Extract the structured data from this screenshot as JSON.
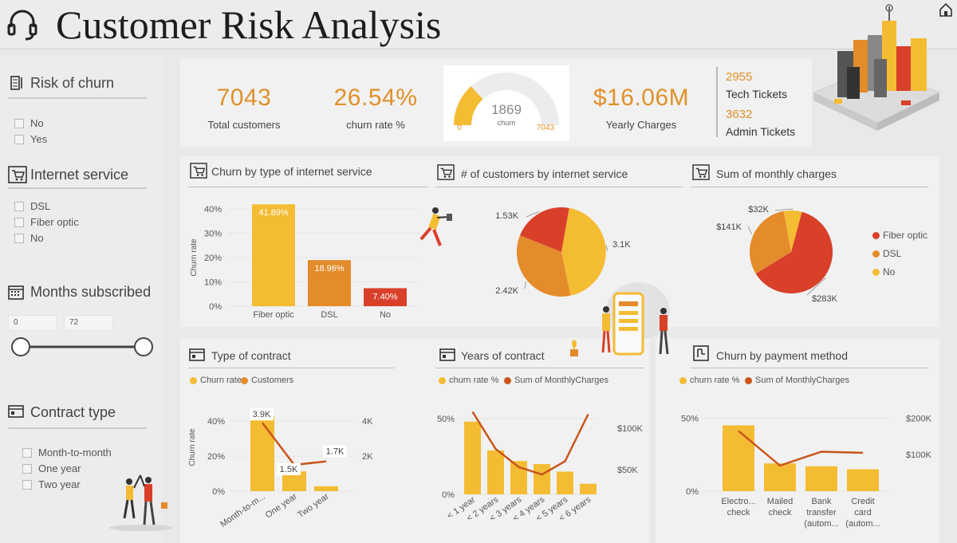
{
  "header": {
    "title": "Customer Risk Analysis"
  },
  "colors": {
    "yellow": "#f4bc33",
    "orange": "#e48b2c",
    "red": "#d8402a",
    "line": "#c8551c",
    "accent_text": "#e0902a"
  },
  "sidebar": {
    "risk_of_churn": {
      "title": "Risk of churn",
      "options": [
        "No",
        "Yes"
      ]
    },
    "internet_service": {
      "title": "Internet service",
      "options": [
        "DSL",
        "Fiber optic",
        "No"
      ]
    },
    "months_subscribed": {
      "title": "Months subscribed",
      "min": "0",
      "max": "72"
    },
    "contract_type": {
      "title": "Contract type",
      "options": [
        "Month-to-month",
        "One year",
        "Two year"
      ]
    }
  },
  "kpis": {
    "total_customers": {
      "value": "7043",
      "label": "Total customers"
    },
    "churn_rate": {
      "value": "26.54%",
      "label": "churn rate %"
    },
    "gauge": {
      "value": "1869",
      "label": "churn",
      "min": "0",
      "max": "7043",
      "fraction": 0.2654
    },
    "yearly_charges": {
      "value": "$16.06M",
      "label": "Yearly Charges"
    },
    "tech_tickets": {
      "value": "2955",
      "label": "Tech Tickets"
    },
    "admin_tickets": {
      "value": "3632",
      "label": "Admin Tickets"
    }
  },
  "chart_data": [
    {
      "id": "churn-by-internet",
      "type": "bar",
      "title": "Churn by type of internet service",
      "ylabel": "Churn rate",
      "ylim": [
        0,
        40
      ],
      "yticks": [
        "0%",
        "10%",
        "20%",
        "30%",
        "40%"
      ],
      "categories": [
        "Fiber optic",
        "DSL",
        "No"
      ],
      "values": [
        41.89,
        18.96,
        7.4
      ],
      "data_labels": [
        "41.89%",
        "18.96%",
        "7.40%"
      ],
      "bar_colors": [
        "#f4bc33",
        "#e48b2c",
        "#d8402a"
      ]
    },
    {
      "id": "customers-by-internet",
      "type": "pie",
      "title": "# of customers by internet service",
      "slices": [
        {
          "label": "3.1K",
          "value": 3100,
          "color": "#f4bc33"
        },
        {
          "label": "2.42K",
          "value": 2420,
          "color": "#e48b2c"
        },
        {
          "label": "1.53K",
          "value": 1530,
          "color": "#d8402a"
        }
      ]
    },
    {
      "id": "monthly-charges",
      "type": "pie",
      "title": "Sum of monthly charges",
      "legend": [
        {
          "name": "Fiber optic",
          "color": "#d8402a"
        },
        {
          "name": "DSL",
          "color": "#e48b2c"
        },
        {
          "name": "No",
          "color": "#f4bc33"
        }
      ],
      "slices": [
        {
          "label": "$283K",
          "value": 283,
          "color": "#d8402a"
        },
        {
          "label": "$141K",
          "value": 141,
          "color": "#e48b2c"
        },
        {
          "label": "$32K",
          "value": 32,
          "color": "#f4bc33"
        }
      ]
    },
    {
      "id": "type-of-contract",
      "type": "bar",
      "title": "Type of contract",
      "legend": [
        "Churn rate",
        "Customers"
      ],
      "ylabel": "Churn rate",
      "ylim": [
        0,
        50
      ],
      "yticks": [
        "0%",
        "20%",
        "40%"
      ],
      "y2ticks": [
        "2K",
        "4K"
      ],
      "y2lim": [
        0,
        5000
      ],
      "categories": [
        "Month-to-m...",
        "One year",
        "Two year"
      ],
      "bar_values": [
        42.7,
        11.3,
        2.8
      ],
      "line_values": [
        3900,
        1500,
        1700
      ],
      "line_labels": [
        "3.9K",
        "1.5K",
        "1.7K"
      ]
    },
    {
      "id": "years-of-contract",
      "type": "bar",
      "title": "Years of contract",
      "legend": [
        "churn rate %",
        "Sum of MonthlyCharges"
      ],
      "ylim": [
        0,
        60
      ],
      "yticks": [
        "0%",
        "50%"
      ],
      "y2ticks": [
        "$50K",
        "$100K"
      ],
      "y2lim": [
        20000,
        130000
      ],
      "categories": [
        "< 1 year",
        "< 2 years",
        "< 3 years",
        "< 4 years",
        "< 5 years",
        "< 6 years"
      ],
      "bar_values": [
        48,
        29,
        22,
        20,
        15,
        7
      ],
      "line_values": [
        120000,
        75000,
        53000,
        44000,
        60000,
        117000
      ]
    },
    {
      "id": "churn-by-payment",
      "type": "bar",
      "title": "Churn by payment method",
      "legend": [
        "churn rate %",
        "Sum of MonthlyCharges"
      ],
      "ylim": [
        0,
        60
      ],
      "yticks": [
        "0%",
        "50%"
      ],
      "y2ticks": [
        "$100K",
        "$200K"
      ],
      "y2lim": [
        0,
        240000
      ],
      "categories": [
        "Electro... check",
        "Mailed check",
        "Bank transfer (autom...",
        "Credit card (autom..."
      ],
      "bar_values": [
        45,
        19,
        17,
        15
      ],
      "line_values": [
        165000,
        70000,
        108000,
        105000
      ]
    }
  ]
}
